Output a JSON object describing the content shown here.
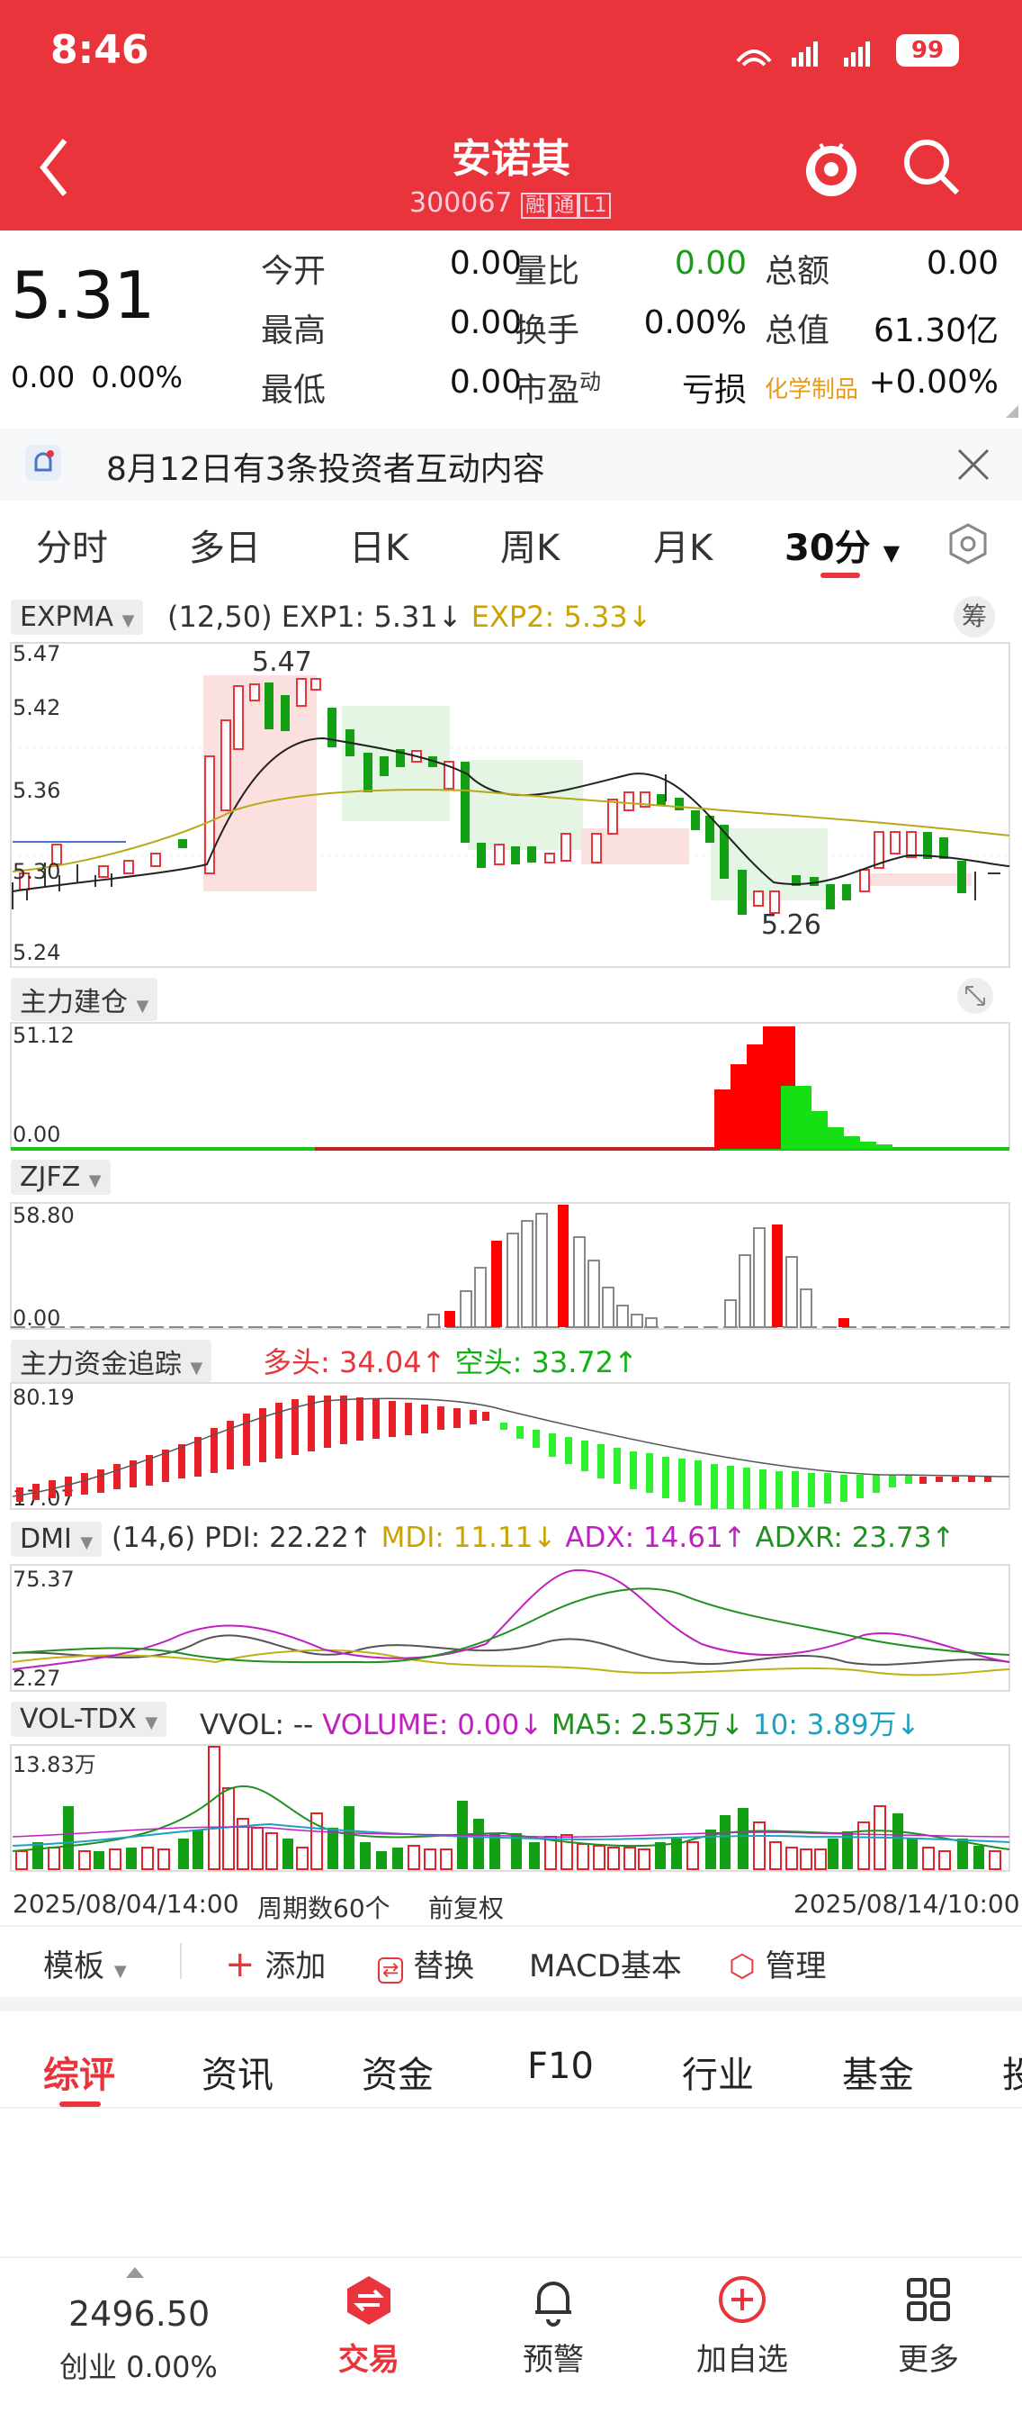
{
  "status": {
    "time": "8:46",
    "battery": "99"
  },
  "header": {
    "name": "安诺其",
    "code": "300067",
    "tag1": "融",
    "tag2": "通",
    "tag3": "L1"
  },
  "quote": {
    "price": "5.31",
    "change": "0.00",
    "change_pct": "0.00%",
    "rows": [
      [
        {
          "l": "今开",
          "v": "0.00"
        },
        {
          "l": "量比",
          "v": "0.00",
          "green": true
        },
        {
          "l": "总额",
          "v": "0.00"
        }
      ],
      [
        {
          "l": "最高",
          "v": "0.00"
        },
        {
          "l": "换手",
          "v": "0.00%"
        },
        {
          "l": "总值",
          "v": "61.30亿"
        }
      ],
      [
        {
          "l": "最低",
          "v": "0.00"
        },
        {
          "l": "市盈",
          "sup": "动",
          "v": "亏损"
        },
        {
          "l": "化学制品",
          "v": "+0.00%"
        }
      ]
    ]
  },
  "notice": {
    "text": "8月12日有3条投资者互动内容"
  },
  "period_tabs": [
    "分时",
    "多日",
    "日K",
    "周K",
    "月K",
    "30分"
  ],
  "main_chart": {
    "indicator": "EXPMA",
    "params": "(12,50)",
    "exp1": "EXP1: 5.31↓",
    "exp2": "EXP2: 5.33↓",
    "y_ticks": [
      "5.47",
      "5.42",
      "5.36",
      "5.30",
      "5.24"
    ],
    "high_label": "5.47",
    "low_label": "5.26",
    "tool": "筹"
  },
  "ind1": {
    "title": "主力建仓",
    "max": "51.12",
    "min": "0.00"
  },
  "ind2": {
    "title": "ZJFZ",
    "max": "58.80",
    "min": "0.00"
  },
  "ind3": {
    "title": "主力资金追踪",
    "long": "多头: 34.04↑",
    "short": "空头: 33.72↑",
    "max": "80.19",
    "min": "17.07"
  },
  "ind4": {
    "title": "DMI",
    "params": "(14,6)",
    "pdi": "PDI: 22.22↑",
    "mdi": "MDI: 11.11↓",
    "adx": "ADX: 14.61↑",
    "adxr": "ADXR: 23.73↑",
    "max": "75.37",
    "min": "2.27"
  },
  "ind5": {
    "title": "VOL-TDX",
    "vvol": "VVOL: --",
    "volume": "VOLUME: 0.00↓",
    "ma5": "MA5: 2.53万↓",
    "ma10": "10: 3.89万↓",
    "max": "13.83万"
  },
  "footer": {
    "start": "2025/08/04/14:00",
    "period": "周期数60个",
    "adj": "前复权",
    "end": "2025/08/14/10:00"
  },
  "toolbar": {
    "template": "模板",
    "add": "添加",
    "replace": "替换",
    "macd": "MACD基本",
    "manage": "管理"
  },
  "bottom_tabs": [
    "综评",
    "资讯",
    "资金",
    "F10",
    "行业",
    "基金",
    "投"
  ],
  "index": {
    "value": "2496.50",
    "name": "创业 0.00%"
  },
  "nav": [
    {
      "label": "交易"
    },
    {
      "label": "预警"
    },
    {
      "label": "加自选"
    },
    {
      "label": "更多"
    }
  ]
}
